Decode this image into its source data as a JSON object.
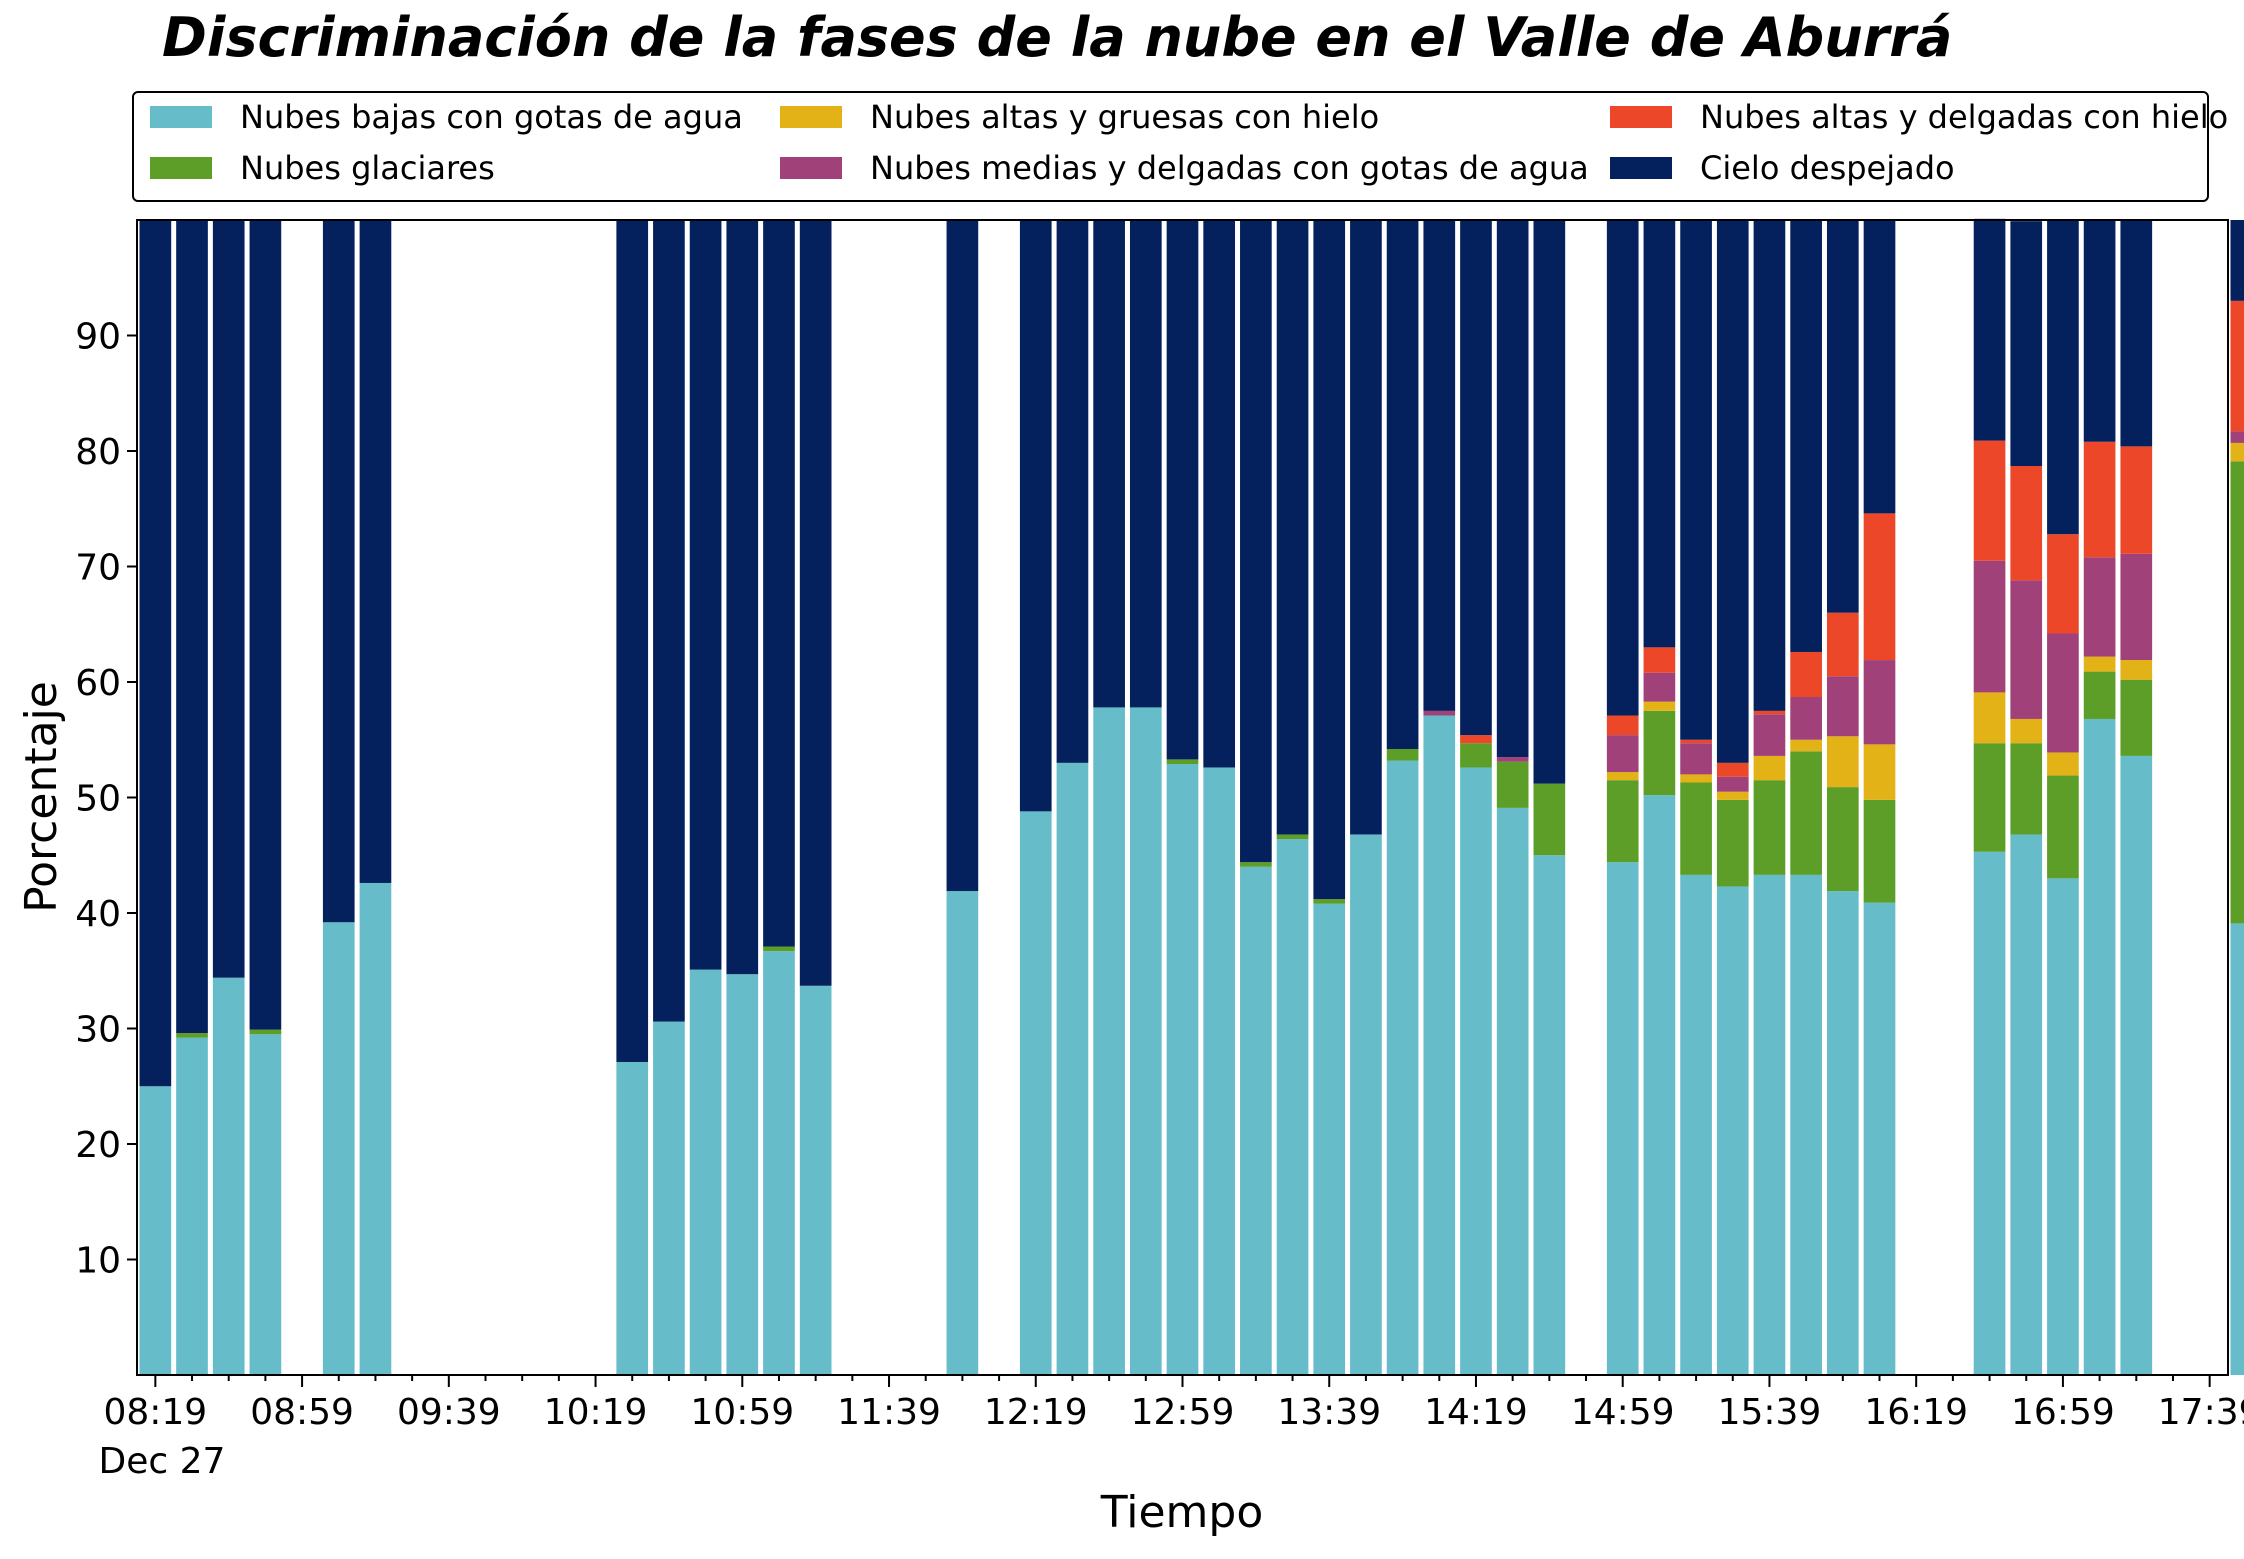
{
  "chart_data": {
    "type": "bar",
    "stacked": true,
    "title": "Discriminación de la fases de la nube en el Valle de Aburrá",
    "xlabel": "Tiempo",
    "ylabel": "Porcentaje",
    "ylim": [
      0,
      100
    ],
    "y_ticks": [
      "10",
      "20",
      "30",
      "40",
      "50",
      "60",
      "70",
      "80",
      "90"
    ],
    "x_tick_labels": [
      "08:19",
      "08:59",
      "09:39",
      "10:19",
      "10:59",
      "11:39",
      "12:19",
      "12:59",
      "13:39",
      "14:19",
      "14:59",
      "15:39",
      "16:19",
      "16:59",
      "17:39"
    ],
    "x_date_label": "Dec 27",
    "x_start": "08:14",
    "x_end": "17:44",
    "bar_interval_minutes": 10,
    "legend": {
      "placement": "top",
      "entries": [
        {
          "label": "Nubes bajas con gotas de agua",
          "color": "#66bdc9"
        },
        {
          "label": "Nubes glaciares",
          "color": "#5c9e28"
        },
        {
          "label": "Nubes altas y gruesas con hielo",
          "color": "#e2b216"
        },
        {
          "label": "Nubes medias y delgadas con gotas de agua",
          "color": "#a0417a"
        },
        {
          "label": "Nubes altas y delgadas con hielo",
          "color": "#ec4729"
        },
        {
          "label": "Cielo despejado",
          "color": "#04215e"
        }
      ]
    },
    "times": [
      "08:19",
      "08:29",
      "08:39",
      "08:49",
      "09:09",
      "09:19",
      "10:29",
      "10:39",
      "10:49",
      "10:59",
      "11:09",
      "11:19",
      "11:59",
      "12:19",
      "12:29",
      "12:39",
      "12:49",
      "12:59",
      "13:09",
      "13:19",
      "13:29",
      "13:39",
      "13:49",
      "13:59",
      "14:09",
      "14:19",
      "14:29",
      "14:39",
      "14:59",
      "15:09",
      "15:19",
      "15:29",
      "15:39",
      "15:49",
      "15:59",
      "16:09",
      "16:39",
      "16:49",
      "16:59",
      "17:09",
      "17:19",
      "17:49"
    ],
    "series": [
      {
        "name": "Nubes bajas con gotas de agua",
        "color": "#66bdc9",
        "values": [
          25,
          29.2,
          34.4,
          29.5,
          39.2,
          42.6,
          27.1,
          30.6,
          35.1,
          34.7,
          36.7,
          33.7,
          41.9,
          48.8,
          53,
          57.8,
          57.8,
          52.9,
          52.6,
          44,
          46.4,
          40.8,
          46.8,
          53.2,
          57.1,
          52.6,
          49.1,
          45,
          44.4,
          50.2,
          43.3,
          42.3,
          43.3,
          43.3,
          41.9,
          40.9,
          45.3,
          46.8,
          43,
          56.8,
          53.6,
          39.1
        ]
      },
      {
        "name": "Nubes glaciares",
        "color": "#5c9e28",
        "values": [
          0,
          0.4,
          0,
          0.4,
          0,
          0,
          0,
          0,
          0,
          0,
          0.4,
          0,
          0,
          0,
          0,
          0,
          0,
          0.4,
          0,
          0.4,
          0.4,
          0.4,
          0,
          1,
          0,
          2.1,
          4,
          6.2,
          7.1,
          7.3,
          8,
          7.5,
          8.2,
          10.7,
          9,
          8.9,
          9.4,
          7.9,
          8.9,
          4.1,
          6.6,
          40
        ]
      },
      {
        "name": "Nubes altas y gruesas con hielo",
        "color": "#e2b216",
        "values": [
          0,
          0,
          0,
          0,
          0,
          0,
          0,
          0,
          0,
          0,
          0,
          0,
          0,
          0,
          0,
          0,
          0,
          0,
          0,
          0,
          0,
          0,
          0,
          0,
          0,
          0,
          0,
          0,
          0.7,
          0.8,
          0.7,
          0.7,
          2.1,
          1,
          4.4,
          4.8,
          4.4,
          2.1,
          2,
          1.3,
          1.7,
          1.6
        ]
      },
      {
        "name": "Nubes medias y delgadas con gotas de agua",
        "color": "#a0417a",
        "values": [
          0,
          0,
          0,
          0,
          0,
          0,
          0,
          0,
          0,
          0,
          0,
          0,
          0,
          0,
          0,
          0,
          0,
          0,
          0,
          0,
          0,
          0,
          0,
          0,
          0.4,
          0,
          0.4,
          0,
          3.2,
          2.5,
          2.7,
          1.3,
          3.6,
          3.7,
          5.2,
          7.3,
          11.4,
          12,
          10.3,
          8.6,
          9.2,
          1
        ]
      },
      {
        "name": "Nubes altas y delgadas con hielo",
        "color": "#ec4729",
        "values": [
          0,
          0,
          0,
          0,
          0,
          0,
          0,
          0,
          0,
          0,
          0,
          0,
          0,
          0,
          0,
          0,
          0,
          0,
          0,
          0,
          0,
          0,
          0,
          0,
          0,
          0.7,
          0,
          0,
          1.7,
          2.2,
          0.3,
          1.2,
          0.3,
          3.9,
          5.5,
          12.7,
          10.4,
          9.9,
          8.6,
          10,
          9.3,
          11.3
        ]
      },
      {
        "name": "Cielo despejado",
        "color": "#04215e",
        "values": [
          75,
          70.4,
          65.6,
          70.1,
          60.8,
          57.4,
          72.9,
          69.4,
          64.9,
          65.3,
          62.9,
          66.3,
          58.1,
          51.2,
          47,
          42.2,
          42.2,
          46.7,
          47.4,
          55.6,
          53.2,
          58.8,
          53.2,
          45.8,
          42.5,
          44.6,
          46.5,
          48.8,
          42.9,
          37,
          45,
          47,
          42.5,
          37.4,
          34,
          25.4,
          19.2,
          21.2,
          27.2,
          19.2,
          19.6,
          7
        ]
      }
    ]
  }
}
